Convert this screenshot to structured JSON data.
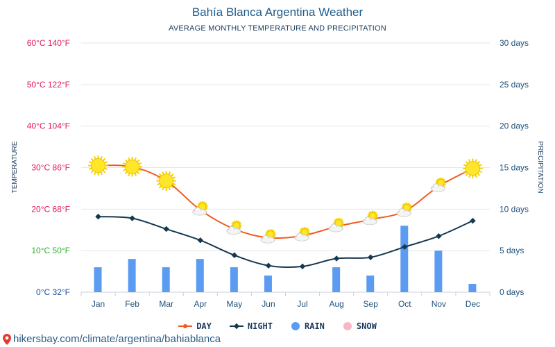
{
  "page": {
    "watermark": "hikersbay.com/climate/argentina/bahiablanca"
  },
  "chart_data": {
    "type": "line",
    "title": "Bahía Blanca Argentina Weather",
    "subtitle": "AVERAGE MONTHLY TEMPERATURE AND PRECIPITATION",
    "ylabel_left": "TEMPERATURE",
    "ylabel_right": "PRECIPITATION",
    "categories": [
      "Jan",
      "Feb",
      "Mar",
      "Apr",
      "May",
      "Jun",
      "Jul",
      "Aug",
      "Sep",
      "Oct",
      "Nov",
      "Dec"
    ],
    "left_axis": {
      "min": 0,
      "max": 60,
      "ticks": [
        {
          "value": 0,
          "label": "0°C 32°F",
          "color": "#1f4f9c"
        },
        {
          "value": 10,
          "label": "10°C 50°F",
          "color": "#2ab32a"
        },
        {
          "value": 20,
          "label": "20°C 68°F",
          "color": "#e0185a"
        },
        {
          "value": 30,
          "label": "30°C 86°F",
          "color": "#e0185a"
        },
        {
          "value": 40,
          "label": "40°C 104°F",
          "color": "#e0185a"
        },
        {
          "value": 50,
          "label": "50°C 122°F",
          "color": "#e0185a"
        },
        {
          "value": 60,
          "label": "60°C 140°F",
          "color": "#e0185a"
        }
      ]
    },
    "right_axis": {
      "min": 0,
      "max": 30,
      "ticks": [
        {
          "value": 0,
          "label": "0 days"
        },
        {
          "value": 5,
          "label": "5 days"
        },
        {
          "value": 10,
          "label": "10 days"
        },
        {
          "value": 15,
          "label": "15 days"
        },
        {
          "value": 20,
          "label": "20 days"
        },
        {
          "value": 25,
          "label": "25 days"
        },
        {
          "value": 30,
          "label": "30 days"
        }
      ]
    },
    "series": [
      {
        "name": "DAY",
        "axis": "left",
        "color": "#f25a1d",
        "values": [
          30.5,
          30.2,
          26.8,
          19.8,
          15.2,
          13.1,
          13.6,
          15.8,
          17.5,
          19.5,
          25.5,
          29.8
        ]
      },
      {
        "name": "NIGHT",
        "axis": "left",
        "color": "#16394f",
        "values": [
          18.2,
          17.8,
          15.2,
          12.5,
          8.9,
          6.4,
          6.2,
          8.1,
          8.4,
          10.9,
          13.5,
          17.2
        ]
      },
      {
        "name": "RAIN",
        "axis": "right",
        "type": "bar",
        "color": "#5b9cf2",
        "values": [
          3,
          4,
          3,
          4,
          3,
          2,
          0,
          3,
          2,
          8,
          5,
          1
        ]
      },
      {
        "name": "SNOW",
        "axis": "right",
        "type": "bar",
        "color": "#f7b7c7",
        "values": [
          0,
          0,
          0,
          0,
          0,
          0,
          0,
          0,
          0,
          0,
          0,
          0
        ]
      }
    ],
    "day_icons": [
      "sun-icon",
      "sun-icon",
      "sun-icon",
      "partly-cloudy-icon",
      "partly-cloudy-icon",
      "partly-cloudy-icon",
      "partly-cloudy-icon",
      "partly-cloudy-icon",
      "partly-cloudy-icon",
      "partly-cloudy-icon",
      "partly-cloudy-icon",
      "sun-icon"
    ],
    "grid": true,
    "legend_position": "bottom-center"
  }
}
